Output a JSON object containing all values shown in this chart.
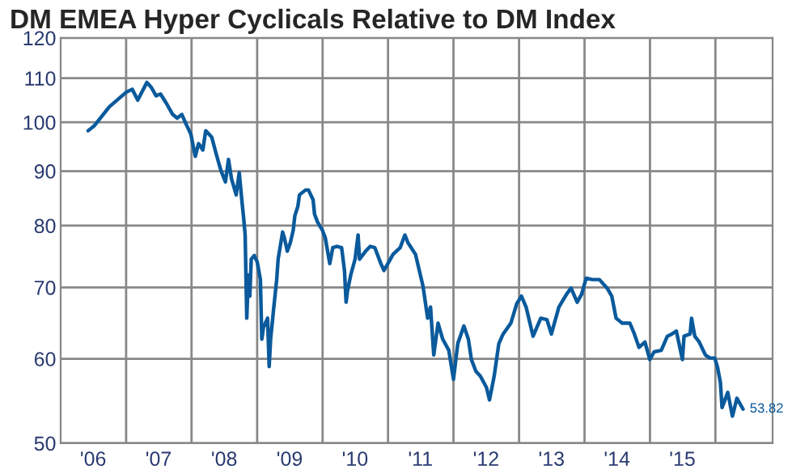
{
  "chart_data": {
    "type": "line",
    "title": "DM EMEA Hyper Cyclicals Relative to DM Index",
    "x": [
      "2006-06-03",
      "2006-07-06",
      "2006-08-18",
      "2006-09-29",
      "2006-11-11",
      "2007-01-01",
      "2007-02-04",
      "2007-03-07",
      "2007-04-02",
      "2007-04-27",
      "2007-05-22",
      "2007-06-17",
      "2007-07-12",
      "2007-08-15",
      "2007-09-18",
      "2007-10-13",
      "2007-11-08",
      "2007-12-03",
      "2007-12-28",
      "2008-01-22",
      "2008-02-09",
      "2008-03-04",
      "2008-03-20",
      "2008-04-23",
      "2008-05-19",
      "2008-06-13",
      "2008-07-08",
      "2008-07-25",
      "2008-08-11",
      "2008-09-06",
      "2008-09-23",
      "2008-10-09",
      "2008-10-18",
      "2008-10-26",
      "2008-11-04",
      "2008-11-13",
      "2008-11-21",
      "2008-11-29",
      "2008-12-16",
      "2009-01-02",
      "2009-01-19",
      "2009-01-27",
      "2009-02-05",
      "2009-02-28",
      "2009-03-09",
      "2009-03-17",
      "2009-04-04",
      "2009-04-20",
      "2009-04-28",
      "2009-05-23",
      "2009-06-02",
      "2009-06-18",
      "2009-07-05",
      "2009-07-21",
      "2009-07-30",
      "2009-08-16",
      "2009-08-25",
      "2009-09-28",
      "2009-10-14",
      "2009-11-09",
      "2009-11-17",
      "2009-12-04",
      "2009-12-31",
      "2010-01-16",
      "2010-02-10",
      "2010-02-27",
      "2010-03-22",
      "2010-04-17",
      "2010-05-03",
      "2010-05-12",
      "2010-05-20",
      "2010-06-07",
      "2010-07-01",
      "2010-07-18",
      "2010-07-26",
      "2010-08-29",
      "2010-09-24",
      "2010-10-19",
      "2010-11-22",
      "2010-12-09",
      "2011-01-04",
      "2011-01-29",
      "2011-03-10",
      "2011-04-05",
      "2011-04-22",
      "2011-06-03",
      "2011-07-15",
      "2011-08-10",
      "2011-08-26",
      "2011-09-13",
      "2011-10-07",
      "2011-11-02",
      "2011-12-06",
      "2012-01-01",
      "2012-01-25",
      "2012-02-28",
      "2012-03-24",
      "2012-04-10",
      "2012-05-05",
      "2012-05-30",
      "2012-07-03",
      "2012-07-20",
      "2012-08-15",
      "2012-09-10",
      "2012-10-04",
      "2012-11-16",
      "2012-12-19",
      "2013-01-14",
      "2013-02-09",
      "2013-03-20",
      "2013-05-02",
      "2013-06-05",
      "2013-06-30",
      "2013-08-11",
      "2013-09-23",
      "2013-10-18",
      "2013-11-21",
      "2013-12-16",
      "2014-01-10",
      "2014-02-14",
      "2014-03-25",
      "2014-05-07",
      "2014-06-02",
      "2014-06-26",
      "2014-07-30",
      "2014-09-11",
      "2014-10-06",
      "2014-11-01",
      "2014-12-04",
      "2014-12-31",
      "2015-01-24",
      "2015-03-05",
      "2015-04-08",
      "2015-05-03",
      "2015-05-28",
      "2015-07-01",
      "2015-07-10",
      "2015-08-13",
      "2015-08-21",
      "2015-09-08",
      "2015-10-03",
      "2015-11-06",
      "2015-12-01",
      "2015-12-28",
      "2016-01-12",
      "2016-01-29",
      "2016-02-07",
      "2016-03-10",
      "2016-04-05",
      "2016-04-30",
      "2016-06-03"
    ],
    "series": [
      {
        "color": "#0a5a9c",
        "values": [
          98.2,
          99.2,
          101.3,
          103.4,
          104.9,
          106.7,
          107.4,
          104.9,
          107.0,
          109.0,
          107.8,
          105.9,
          106.3,
          104.1,
          101.7,
          100.9,
          101.7,
          99.5,
          97.5,
          92.9,
          95.5,
          94.2,
          98.2,
          96.8,
          93.2,
          90.1,
          87.9,
          92.3,
          88.5,
          85.5,
          89.7,
          84.0,
          81.2,
          78.4,
          65.5,
          71.9,
          68.7,
          74.4,
          75.0,
          73.9,
          71.2,
          62.6,
          64.2,
          65.5,
          59.0,
          62.6,
          67.1,
          71.2,
          74.4,
          78.9,
          77.9,
          75.7,
          77.1,
          79.2,
          81.7,
          83.4,
          85.5,
          86.4,
          86.4,
          84.6,
          82.0,
          80.6,
          79.2,
          77.9,
          73.7,
          76.3,
          76.5,
          76.3,
          72.6,
          67.8,
          69.5,
          71.9,
          74.4,
          78.4,
          74.4,
          75.7,
          76.5,
          76.3,
          73.7,
          72.6,
          73.9,
          75.2,
          76.3,
          78.4,
          77.1,
          75.2,
          70.2,
          65.5,
          67.1,
          60.5,
          64.8,
          62.6,
          61.1,
          57.4,
          62.0,
          64.4,
          62.6,
          59.9,
          58.4,
          57.8,
          56.4,
          54.9,
          57.8,
          62.0,
          63.3,
          64.8,
          67.6,
          68.7,
          67.1,
          63.0,
          65.5,
          65.3,
          63.3,
          67.1,
          69.0,
          69.9,
          67.8,
          69.0,
          71.4,
          71.2,
          71.2,
          69.9,
          68.7,
          65.5,
          64.8,
          64.8,
          63.3,
          61.5,
          62.2,
          59.9,
          60.9,
          61.1,
          63.0,
          63.3,
          63.7,
          59.9,
          63.0,
          63.3,
          65.5,
          63.0,
          62.2,
          60.5,
          60.1,
          60.1,
          59.0,
          57.0,
          54.0,
          55.8,
          53.0,
          55.1,
          53.82
        ]
      }
    ],
    "log": "y",
    "ylim": [
      50,
      120
    ],
    "yticks": [
      50,
      60,
      70,
      80,
      90,
      100,
      110,
      120
    ],
    "xlim": [
      "2006-01-01",
      "2016-11-15"
    ],
    "xticks": [
      {
        "value": "2006-07-01",
        "label": "'06"
      },
      {
        "value": "2007-01-01",
        "label": null
      },
      {
        "value": "2007-07-01",
        "label": "'07"
      },
      {
        "value": "2008-01-01",
        "label": null
      },
      {
        "value": "2008-07-01",
        "label": "'08"
      },
      {
        "value": "2009-01-01",
        "label": null
      },
      {
        "value": "2009-07-01",
        "label": "'09"
      },
      {
        "value": "2010-01-01",
        "label": null
      },
      {
        "value": "2010-07-01",
        "label": "'10"
      },
      {
        "value": "2011-01-01",
        "label": null
      },
      {
        "value": "2011-07-01",
        "label": "'11"
      },
      {
        "value": "2012-01-01",
        "label": null
      },
      {
        "value": "2012-07-01",
        "label": "'12"
      },
      {
        "value": "2013-01-01",
        "label": null
      },
      {
        "value": "2013-07-01",
        "label": "'13"
      },
      {
        "value": "2014-01-01",
        "label": null
      },
      {
        "value": "2014-07-01",
        "label": "'14"
      },
      {
        "value": "2015-01-01",
        "label": null
      },
      {
        "value": "2015-07-01",
        "label": "'15"
      },
      {
        "value": "2016-01-01",
        "label": null
      }
    ],
    "grid": true,
    "annotations": [
      {
        "text": "53.82",
        "x": "2016-06-03",
        "y": 53.82
      }
    ]
  }
}
